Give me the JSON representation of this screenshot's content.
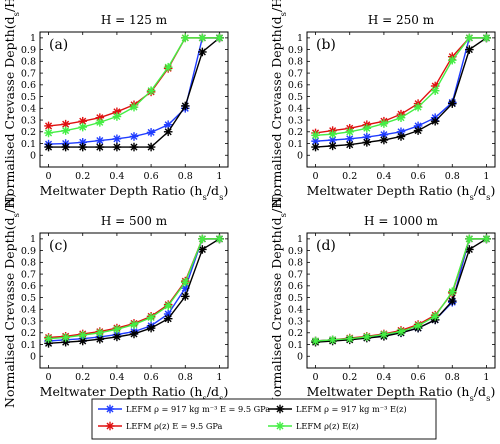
{
  "colors": {
    "series1": "#1f3cff",
    "series2": "#e01010",
    "series3": "#000000",
    "series4": "#44ee44"
  },
  "legend": {
    "entries": [
      "LEFM  ρ = 917 kg m⁻³  E = 9.5 GPa",
      "LEFM  ρ(z)  E = 9.5 GPa",
      "LEFM  ρ = 917 kg m⁻³  E(z)",
      "LEFM  ρ(z)  E(z)"
    ]
  },
  "chart_data": [
    {
      "type": "line",
      "panel_label": "(a)",
      "title": "H = 125 m",
      "xlabel": "Meltwater Depth Ratio (h_s/d_s)",
      "ylabel": "Normalised Crevasse Depth(d_s/H)",
      "xlim": [
        -0.05,
        1.05
      ],
      "ylim": [
        -0.1,
        1.05
      ],
      "xticks": [
        "0",
        "0.2",
        "0.4",
        "0.6",
        "0.8",
        "1"
      ],
      "yticks": [
        "0",
        "0.1",
        "0.2",
        "0.3",
        "0.4",
        "0.5",
        "0.6",
        "0.7",
        "0.8",
        "0.9",
        "1"
      ],
      "series": [
        {
          "name": "LEFM  ρ = 917 kg m⁻³  E = 9.5 GPa",
          "x": [
            0,
            0.1,
            0.2,
            0.3,
            0.4,
            0.5,
            0.6,
            0.7,
            0.8,
            0.9,
            1
          ],
          "y": [
            0.095,
            0.1,
            0.11,
            0.125,
            0.14,
            0.16,
            0.195,
            0.26,
            0.4,
            1,
            1
          ]
        },
        {
          "name": "LEFM  ρ(z)  E = 9.5 GPa",
          "x": [
            0,
            0.1,
            0.2,
            0.3,
            0.4,
            0.5,
            0.6,
            0.7,
            0.8,
            0.9,
            1
          ],
          "y": [
            0.25,
            0.265,
            0.29,
            0.32,
            0.37,
            0.43,
            0.54,
            0.74,
            1,
            1,
            1
          ]
        },
        {
          "name": "LEFM  ρ = 917 kg m⁻³  E(z)",
          "x": [
            0,
            0.1,
            0.2,
            0.3,
            0.4,
            0.5,
            0.6,
            0.7,
            0.8,
            0.9,
            1
          ],
          "y": [
            0.07,
            0.07,
            0.07,
            0.07,
            0.07,
            0.07,
            0.07,
            0.2,
            0.42,
            0.88,
            1
          ]
        },
        {
          "name": "LEFM  ρ(z)  E(z)",
          "x": [
            0,
            0.1,
            0.2,
            0.3,
            0.4,
            0.5,
            0.6,
            0.7,
            0.8,
            0.9,
            1
          ],
          "y": [
            0.19,
            0.21,
            0.24,
            0.28,
            0.33,
            0.41,
            0.55,
            0.75,
            1,
            1,
            1
          ]
        }
      ]
    },
    {
      "type": "line",
      "panel_label": "(b)",
      "title": "H = 250 m",
      "xlabel": "Meltwater Depth Ratio (h_s/d_s)",
      "ylabel": "Normalised Crevasse Depth(d_s/H)",
      "xlim": [
        -0.05,
        1.05
      ],
      "ylim": [
        -0.1,
        1.05
      ],
      "xticks": [
        "0",
        "0.2",
        "0.4",
        "0.6",
        "0.8",
        "1"
      ],
      "yticks": [
        "0",
        "0.1",
        "0.2",
        "0.3",
        "0.4",
        "0.5",
        "0.6",
        "0.7",
        "0.8",
        "0.9",
        "1"
      ],
      "series": [
        {
          "name": "LEFM  ρ = 917 kg m⁻³  E = 9.5 GPa",
          "x": [
            0,
            0.1,
            0.2,
            0.3,
            0.4,
            0.5,
            0.6,
            0.7,
            0.8,
            0.9,
            1
          ],
          "y": [
            0.12,
            0.13,
            0.14,
            0.155,
            0.175,
            0.2,
            0.25,
            0.32,
            0.45,
            1,
            1
          ]
        },
        {
          "name": "LEFM  ρ(z)  E = 9.5 GPa",
          "x": [
            0,
            0.1,
            0.2,
            0.3,
            0.4,
            0.5,
            0.6,
            0.7,
            0.8,
            0.9,
            1
          ],
          "y": [
            0.19,
            0.21,
            0.23,
            0.26,
            0.29,
            0.35,
            0.44,
            0.59,
            0.84,
            1,
            1
          ]
        },
        {
          "name": "LEFM  ρ = 917 kg m⁻³  E(z)",
          "x": [
            0,
            0.1,
            0.2,
            0.3,
            0.4,
            0.5,
            0.6,
            0.7,
            0.8,
            0.9,
            1
          ],
          "y": [
            0.07,
            0.08,
            0.09,
            0.11,
            0.13,
            0.16,
            0.21,
            0.29,
            0.44,
            0.9,
            1
          ]
        },
        {
          "name": "LEFM  ρ(z)  E(z)",
          "x": [
            0,
            0.1,
            0.2,
            0.3,
            0.4,
            0.5,
            0.6,
            0.7,
            0.8,
            0.9,
            1
          ],
          "y": [
            0.17,
            0.18,
            0.2,
            0.23,
            0.27,
            0.32,
            0.41,
            0.55,
            0.81,
            1,
            1
          ]
        }
      ]
    },
    {
      "type": "line",
      "panel_label": "(c)",
      "title": "H = 500 m",
      "xlabel": "Meltwater Depth Ratio (h_s/d_s)",
      "ylabel": "Normalised Crevasse Depth(d_s/H)",
      "xlim": [
        -0.05,
        1.05
      ],
      "ylim": [
        -0.1,
        1.05
      ],
      "xticks": [
        "0",
        "0.2",
        "0.4",
        "0.6",
        "0.8",
        "1"
      ],
      "yticks": [
        "0",
        "0.1",
        "0.2",
        "0.3",
        "0.4",
        "0.5",
        "0.6",
        "0.7",
        "0.8",
        "0.9",
        "1"
      ],
      "series": [
        {
          "name": "LEFM  ρ = 917 kg m⁻³  E = 9.5 GPa",
          "x": [
            0,
            0.1,
            0.2,
            0.3,
            0.4,
            0.5,
            0.6,
            0.7,
            0.8,
            0.9,
            1
          ],
          "y": [
            0.13,
            0.14,
            0.15,
            0.165,
            0.185,
            0.21,
            0.26,
            0.36,
            0.58,
            1,
            1
          ]
        },
        {
          "name": "LEFM  ρ(z)  E = 9.5 GPa",
          "x": [
            0,
            0.1,
            0.2,
            0.3,
            0.4,
            0.5,
            0.6,
            0.7,
            0.8,
            0.9,
            1
          ],
          "y": [
            0.16,
            0.17,
            0.19,
            0.21,
            0.24,
            0.28,
            0.34,
            0.44,
            0.64,
            1,
            1
          ]
        },
        {
          "name": "LEFM  ρ = 917 kg m⁻³  E(z)",
          "x": [
            0,
            0.1,
            0.2,
            0.3,
            0.4,
            0.5,
            0.6,
            0.7,
            0.8,
            0.9,
            1
          ],
          "y": [
            0.11,
            0.12,
            0.13,
            0.145,
            0.165,
            0.19,
            0.24,
            0.32,
            0.51,
            0.91,
            1
          ]
        },
        {
          "name": "LEFM  ρ(z)  E(z)",
          "x": [
            0,
            0.1,
            0.2,
            0.3,
            0.4,
            0.5,
            0.6,
            0.7,
            0.8,
            0.9,
            1
          ],
          "y": [
            0.15,
            0.16,
            0.18,
            0.2,
            0.23,
            0.27,
            0.33,
            0.43,
            0.63,
            1,
            1
          ]
        }
      ]
    },
    {
      "type": "line",
      "panel_label": "(d)",
      "title": "H = 1000 m",
      "xlabel": "Meltwater Depth Ratio (h_s/d_s)",
      "ylabel": "Normalised Crevasse Depth(d_s/H)",
      "xlim": [
        -0.05,
        1.05
      ],
      "ylim": [
        -0.1,
        1.05
      ],
      "xticks": [
        "0",
        "0.2",
        "0.4",
        "0.6",
        "0.8",
        "1"
      ],
      "yticks": [
        "0",
        "0.1",
        "0.2",
        "0.3",
        "0.4",
        "0.5",
        "0.6",
        "0.7",
        "0.8",
        "0.9",
        "1"
      ],
      "series": [
        {
          "name": "LEFM  ρ = 917 kg m⁻³  E = 9.5 GPa",
          "x": [
            0,
            0.1,
            0.2,
            0.3,
            0.4,
            0.5,
            0.6,
            0.7,
            0.8,
            0.9,
            1
          ],
          "y": [
            0.13,
            0.14,
            0.15,
            0.16,
            0.18,
            0.2,
            0.24,
            0.31,
            0.46,
            1,
            1
          ]
        },
        {
          "name": "LEFM  ρ(z)  E = 9.5 GPa",
          "x": [
            0,
            0.1,
            0.2,
            0.3,
            0.4,
            0.5,
            0.6,
            0.7,
            0.8,
            0.9,
            1
          ],
          "y": [
            0.13,
            0.14,
            0.155,
            0.17,
            0.19,
            0.22,
            0.27,
            0.35,
            0.54,
            1,
            1
          ]
        },
        {
          "name": "LEFM  ρ = 917 kg m⁻³  E(z)",
          "x": [
            0,
            0.1,
            0.2,
            0.3,
            0.4,
            0.5,
            0.6,
            0.7,
            0.8,
            0.9,
            1
          ],
          "y": [
            0.12,
            0.13,
            0.14,
            0.155,
            0.17,
            0.2,
            0.24,
            0.31,
            0.47,
            0.91,
            1
          ]
        },
        {
          "name": "LEFM  ρ(z)  E(z)",
          "x": [
            0,
            0.1,
            0.2,
            0.3,
            0.4,
            0.5,
            0.6,
            0.7,
            0.8,
            0.9,
            1
          ],
          "y": [
            0.13,
            0.14,
            0.15,
            0.165,
            0.185,
            0.21,
            0.26,
            0.34,
            0.55,
            1,
            1
          ]
        }
      ]
    }
  ]
}
